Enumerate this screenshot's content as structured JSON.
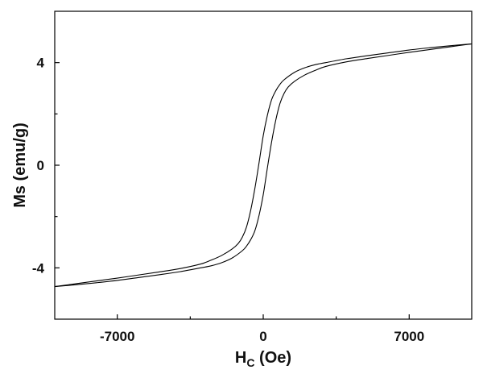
{
  "chart_data": {
    "type": "line",
    "title": "",
    "xlabel": {
      "main": "H",
      "sub": "C",
      "rest": " (Oe)"
    },
    "ylabel": "Ms (emu/g)",
    "xlim": [
      -10000,
      10000
    ],
    "ylim": [
      -6,
      6
    ],
    "xticks": [
      -7000,
      0,
      7000
    ],
    "xtick_labels": [
      "-7000",
      "0",
      "7000"
    ],
    "yticks": [
      -4,
      0,
      4
    ],
    "ytick_labels": [
      "-4",
      "0",
      "4"
    ],
    "grid": false,
    "legend": "none",
    "line_color": "#000000",
    "series": [
      {
        "x": [
          -10000,
          -9000,
          -8000,
          -7000,
          -6000,
          -5000,
          -4000,
          -3000,
          -2500,
          -2000,
          -1500,
          -1200,
          -1000,
          -800,
          -600,
          -400,
          -200,
          0,
          200,
          400,
          600,
          800,
          1000,
          1500,
          2000,
          2500,
          3000,
          4000,
          5000,
          6000,
          7000,
          8000,
          9000,
          10000
        ],
        "y": [
          -4.73,
          -4.62,
          -4.51,
          -4.4,
          -4.28,
          -4.16,
          -4.03,
          -3.85,
          -3.7,
          -3.52,
          -3.27,
          -3.05,
          -2.8,
          -2.4,
          -1.75,
          -0.9,
          0.1,
          1.15,
          1.95,
          2.55,
          2.9,
          3.15,
          3.33,
          3.62,
          3.8,
          3.92,
          4.0,
          4.15,
          4.27,
          4.38,
          4.49,
          4.58,
          4.66,
          4.73
        ]
      },
      {
        "x": [
          -10000,
          -9000,
          -8000,
          -7000,
          -6000,
          -5000,
          -4000,
          -3000,
          -2500,
          -2000,
          -1500,
          -1000,
          -800,
          -600,
          -400,
          -200,
          0,
          200,
          400,
          600,
          800,
          1000,
          1200,
          1500,
          2000,
          2500,
          3000,
          4000,
          5000,
          6000,
          7000,
          8000,
          9000,
          10000
        ],
        "y": [
          -4.73,
          -4.66,
          -4.58,
          -4.49,
          -4.38,
          -4.27,
          -4.15,
          -4.0,
          -3.92,
          -3.8,
          -3.62,
          -3.33,
          -3.15,
          -2.9,
          -2.55,
          -1.95,
          -1.15,
          -0.1,
          0.9,
          1.75,
          2.4,
          2.8,
          3.05,
          3.27,
          3.52,
          3.7,
          3.85,
          4.03,
          4.16,
          4.28,
          4.4,
          4.51,
          4.62,
          4.73
        ]
      }
    ]
  }
}
